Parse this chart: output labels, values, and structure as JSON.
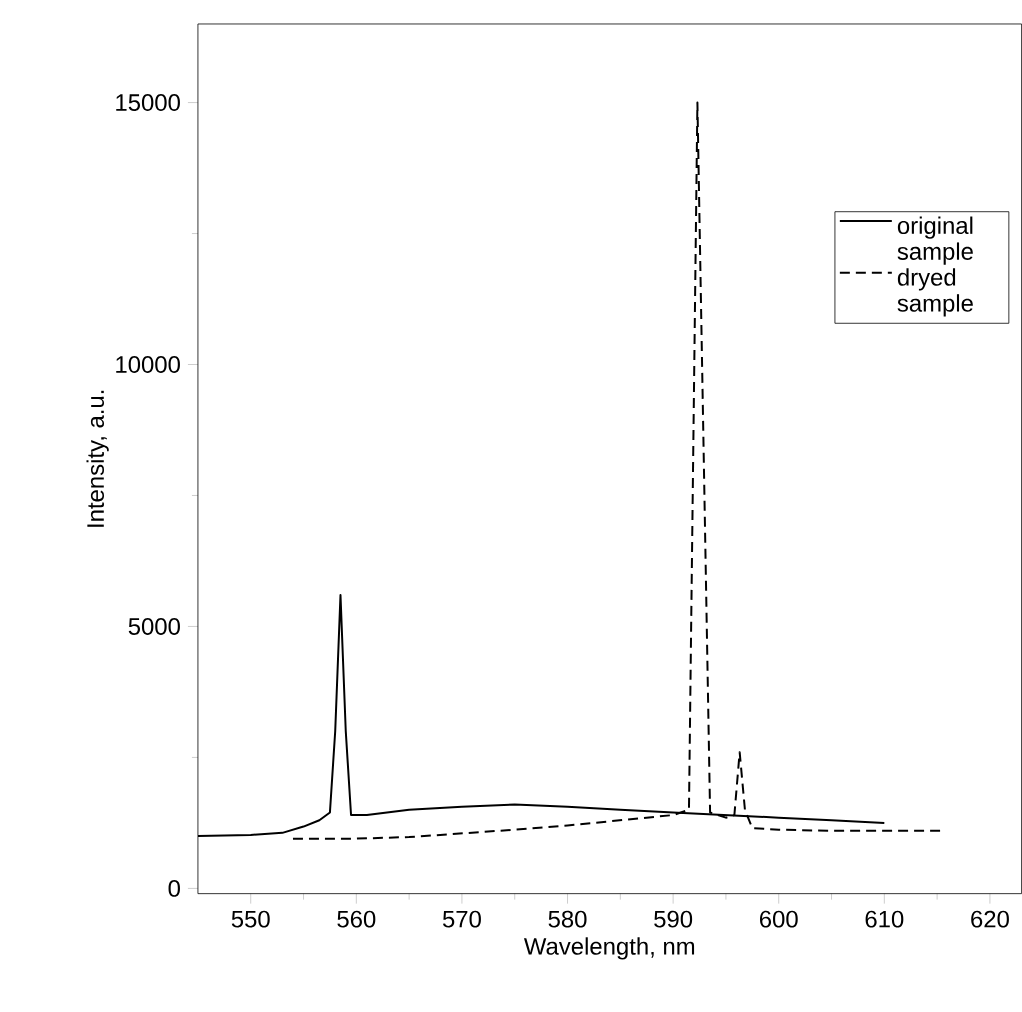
{
  "chart_data": {
    "type": "line",
    "xlabel": "Wavelength, nm",
    "ylabel": "Intensity, a.u.",
    "xlim": [
      545,
      623
    ],
    "ylim": [
      -100,
      16500
    ],
    "xticks": [
      550,
      560,
      570,
      580,
      590,
      600,
      610,
      620
    ],
    "yticks": [
      0,
      5000,
      10000,
      15000
    ],
    "legend": "right",
    "grid": false,
    "marker": "none",
    "series": [
      {
        "name": "original sample",
        "color": "#000000",
        "line_style": "solid",
        "x": [
          545,
          550,
          553,
          555,
          556.5,
          557.5,
          558,
          558.5,
          559,
          559.5,
          561,
          565,
          570,
          575,
          580,
          585,
          590,
          595,
          600,
          605,
          610
        ],
        "values": [
          1000,
          1020,
          1060,
          1180,
          1300,
          1450,
          3000,
          5600,
          3000,
          1400,
          1400,
          1500,
          1560,
          1600,
          1560,
          1500,
          1450,
          1400,
          1350,
          1300,
          1250
        ]
      },
      {
        "name": "dryed sample",
        "color": "#000000",
        "line_style": "dashed",
        "x": [
          554,
          560,
          565,
          570,
          575,
          580,
          585,
          590,
          591.5,
          592.3,
          593.5,
          595,
          595.8,
          596.3,
          596.8,
          597.5,
          600,
          605,
          610,
          615.5
        ],
        "values": [
          950,
          950,
          980,
          1050,
          1120,
          1200,
          1300,
          1400,
          1500,
          15000,
          1450,
          1350,
          1400,
          2600,
          1500,
          1150,
          1120,
          1100,
          1100,
          1100
        ]
      }
    ]
  }
}
